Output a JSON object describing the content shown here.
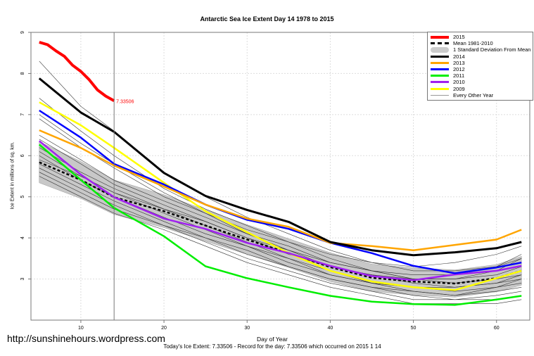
{
  "chart_data": {
    "type": "line",
    "title": "Antarctic Sea Ice Extent Day 14 1978 to 2015",
    "xlabel": "Day of Year",
    "ylabel": "Ice Extent in millions of sq. km.",
    "subtitle": "Today's Ice Extent: 7.33506  - Record for the day: 7.33506 which occurred on 2015 1 14",
    "xlim": [
      4,
      64
    ],
    "ylim": [
      2,
      9
    ],
    "xticks": [
      10,
      20,
      30,
      40,
      50,
      60
    ],
    "yticks": [
      3,
      4,
      5,
      6,
      7,
      8,
      9
    ],
    "grid": true,
    "legend_position": "top-right",
    "marker_day": 14,
    "end_label": "7.33506",
    "x": [
      5,
      10,
      14,
      20,
      25,
      30,
      35,
      40,
      45,
      50,
      55,
      60,
      63
    ],
    "series": [
      {
        "name": "2015",
        "color": "#ff0000",
        "width": 4,
        "x": [
          5,
          6,
          7,
          8,
          9,
          10,
          11,
          12,
          13,
          14
        ],
        "values": [
          8.76,
          8.7,
          8.55,
          8.42,
          8.2,
          8.05,
          7.85,
          7.6,
          7.45,
          7.335
        ]
      },
      {
        "name": "2014",
        "color": "#000000",
        "width": 3,
        "values": [
          7.88,
          7.05,
          6.58,
          5.58,
          5.02,
          4.68,
          4.39,
          3.9,
          3.7,
          3.58,
          3.65,
          3.75,
          3.9
        ]
      },
      {
        "name": "2013",
        "color": "#ffa500",
        "width": 2.5,
        "values": [
          6.62,
          6.19,
          5.76,
          5.25,
          4.81,
          4.47,
          4.27,
          3.88,
          3.8,
          3.7,
          3.83,
          3.96,
          4.2
        ]
      },
      {
        "name": "2012",
        "color": "#0000ff",
        "width": 2.5,
        "values": [
          7.1,
          6.44,
          5.8,
          5.3,
          4.81,
          4.44,
          4.22,
          3.88,
          3.63,
          3.32,
          3.14,
          3.28,
          3.4
        ]
      },
      {
        "name": "2011",
        "color": "#00ee00",
        "width": 2.5,
        "values": [
          6.27,
          5.41,
          4.73,
          4.04,
          3.31,
          3.02,
          2.8,
          2.59,
          2.45,
          2.39,
          2.37,
          2.5,
          2.59
        ]
      },
      {
        "name": "2010",
        "color": "#a020f0",
        "width": 2.5,
        "values": [
          6.36,
          5.54,
          4.99,
          4.47,
          4.22,
          3.88,
          3.63,
          3.32,
          3.07,
          2.97,
          3.11,
          3.2,
          3.32
        ]
      },
      {
        "name": "2009",
        "color": "#ffff00",
        "width": 2.5,
        "values": [
          7.3,
          6.74,
          6.19,
          5.34,
          4.65,
          4.14,
          3.63,
          3.2,
          2.94,
          2.8,
          2.73,
          3.02,
          3.2
        ]
      }
    ],
    "mean": {
      "name": "Mean 1981-2010",
      "values": [
        5.84,
        5.41,
        4.99,
        4.65,
        4.3,
        3.96,
        3.63,
        3.29,
        3.03,
        2.94,
        2.89,
        3.02,
        3.2
      ]
    },
    "sd_band": {
      "name": "1 Standard Deviation From Mean",
      "values": [
        0.5,
        0.45,
        0.42,
        0.4,
        0.38,
        0.36,
        0.35,
        0.35,
        0.33,
        0.33,
        0.33,
        0.33,
        0.35
      ]
    },
    "other_years": {
      "name": "Every Other Year",
      "values": [
        [
          8.3,
          7.2,
          6.6,
          5.6,
          5.0,
          4.5,
          4.1,
          3.7,
          3.4,
          3.2,
          3.2,
          3.3,
          3.5
        ],
        [
          7.4,
          6.6,
          6.0,
          5.2,
          4.7,
          4.3,
          3.9,
          3.5,
          3.2,
          3.0,
          2.9,
          3.0,
          3.1
        ],
        [
          6.9,
          6.2,
          5.7,
          5.0,
          4.6,
          4.1,
          3.8,
          3.4,
          3.2,
          3.0,
          3.0,
          3.1,
          3.3
        ],
        [
          6.5,
          5.9,
          5.4,
          4.9,
          4.5,
          4.1,
          3.7,
          3.3,
          3.1,
          2.9,
          2.8,
          2.9,
          3.0
        ],
        [
          6.2,
          5.6,
          5.2,
          4.7,
          4.3,
          3.9,
          3.5,
          3.2,
          2.9,
          2.8,
          2.7,
          2.8,
          2.9
        ],
        [
          6.0,
          5.4,
          5.0,
          4.5,
          4.1,
          3.8,
          3.4,
          3.1,
          2.9,
          2.7,
          2.6,
          2.7,
          2.8
        ],
        [
          5.8,
          5.3,
          4.9,
          4.4,
          4.0,
          3.7,
          3.3,
          3.0,
          2.8,
          2.6,
          2.5,
          2.6,
          2.7
        ],
        [
          5.6,
          5.1,
          4.7,
          4.3,
          3.9,
          3.5,
          3.2,
          2.9,
          2.7,
          2.5,
          2.5,
          2.5,
          2.6
        ],
        [
          5.5,
          5.0,
          4.6,
          4.2,
          3.8,
          3.4,
          3.1,
          2.8,
          2.6,
          2.4,
          2.4,
          2.4,
          2.5
        ],
        [
          5.9,
          5.5,
          5.1,
          4.7,
          4.4,
          4.0,
          3.7,
          3.4,
          3.2,
          3.1,
          3.1,
          3.3,
          3.6
        ],
        [
          6.4,
          5.8,
          5.3,
          4.8,
          4.4,
          4.0,
          3.6,
          3.3,
          3.1,
          3.0,
          3.0,
          3.2,
          3.5
        ],
        [
          7.0,
          6.3,
          5.8,
          5.1,
          4.6,
          4.2,
          3.9,
          3.6,
          3.4,
          3.3,
          3.4,
          3.6,
          3.8
        ],
        [
          5.7,
          5.2,
          4.8,
          4.3,
          4.0,
          3.6,
          3.3,
          3.0,
          2.8,
          2.7,
          2.6,
          2.8,
          3.0
        ],
        [
          6.1,
          5.5,
          5.1,
          4.6,
          4.2,
          3.8,
          3.5,
          3.1,
          2.9,
          2.8,
          2.8,
          2.9,
          3.1
        ]
      ]
    }
  },
  "footer": {
    "url": "http://sunshinehours.wordpress.com"
  }
}
